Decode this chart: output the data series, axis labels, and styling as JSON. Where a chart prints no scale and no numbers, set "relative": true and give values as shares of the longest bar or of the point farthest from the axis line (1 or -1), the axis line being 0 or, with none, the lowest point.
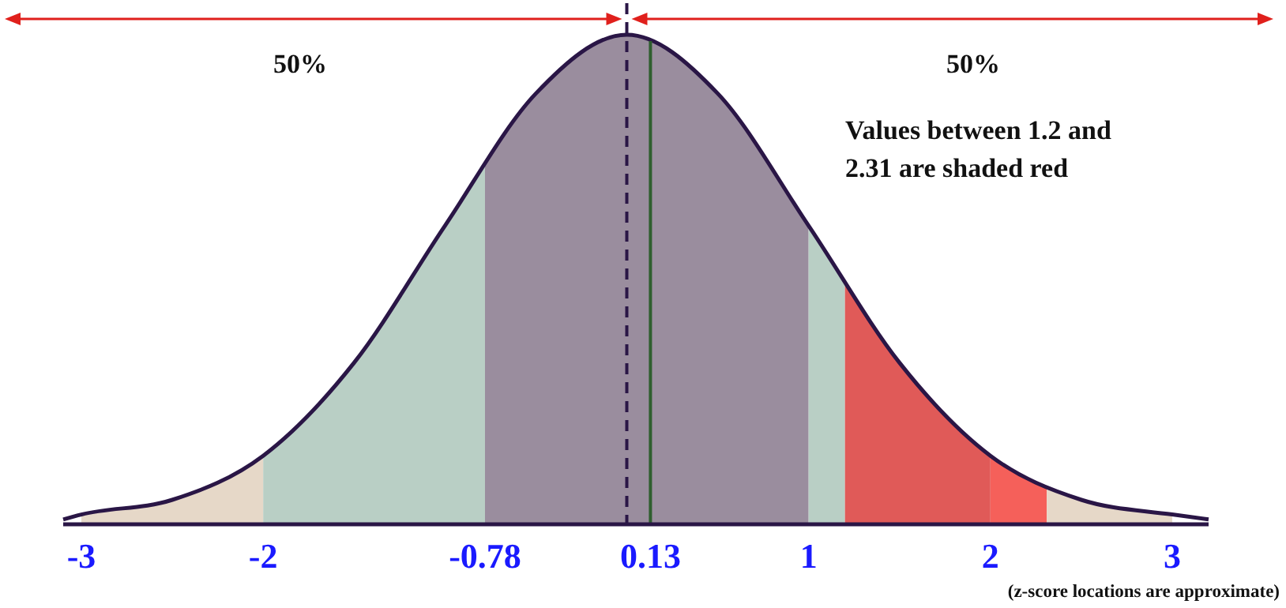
{
  "chart_data": {
    "type": "line",
    "relative": true,
    "x": [
      -3.1,
      -3,
      -2.5,
      -2,
      -1.5,
      -1,
      -0.5,
      0,
      0.5,
      1,
      1.5,
      2,
      2.5,
      3,
      3.2
    ],
    "series": [
      {
        "color": "#2a1646",
        "values": [
          0.01,
          0.02,
          0.05,
          0.14,
          0.33,
          0.61,
          0.88,
          1,
          0.88,
          0.61,
          0.33,
          0.14,
          0.05,
          0.02,
          0.01
        ]
      }
    ],
    "xlim": [
      -3.1,
      3.2
    ],
    "xticks": [
      -3,
      -2,
      -0.78,
      0.13,
      1,
      2,
      3
    ],
    "bands": [
      {
        "axis": "x",
        "from": -3,
        "to": -2,
        "color": "#e6d8c8"
      },
      {
        "axis": "x",
        "from": -2,
        "to": -0.78,
        "color": "#b9cfc5"
      },
      {
        "axis": "x",
        "from": -0.78,
        "to": 1,
        "color": "#9a8d9e"
      },
      {
        "axis": "x",
        "from": 1,
        "to": 1.2,
        "color": "#b9cfc5"
      },
      {
        "axis": "x",
        "from": 1.2,
        "to": 2,
        "color": "#e05a58"
      },
      {
        "axis": "x",
        "from": 2,
        "to": 2.31,
        "color": "#f5605a"
      },
      {
        "axis": "x",
        "from": 2.31,
        "to": 3,
        "color": "#e6d8c8"
      }
    ],
    "ref_lines": [
      {
        "axis": "x",
        "value": 0,
        "color": "#2a1646",
        "line_style": "dashed"
      },
      {
        "axis": "x",
        "value": 0.13,
        "color": "#2e5e2e",
        "line_style": "solid"
      }
    ],
    "annotations": [
      "50%",
      "50%",
      "Values between 1.2 and 2.31 are shaded red",
      "(z-score locations are approximate)"
    ]
  }
}
